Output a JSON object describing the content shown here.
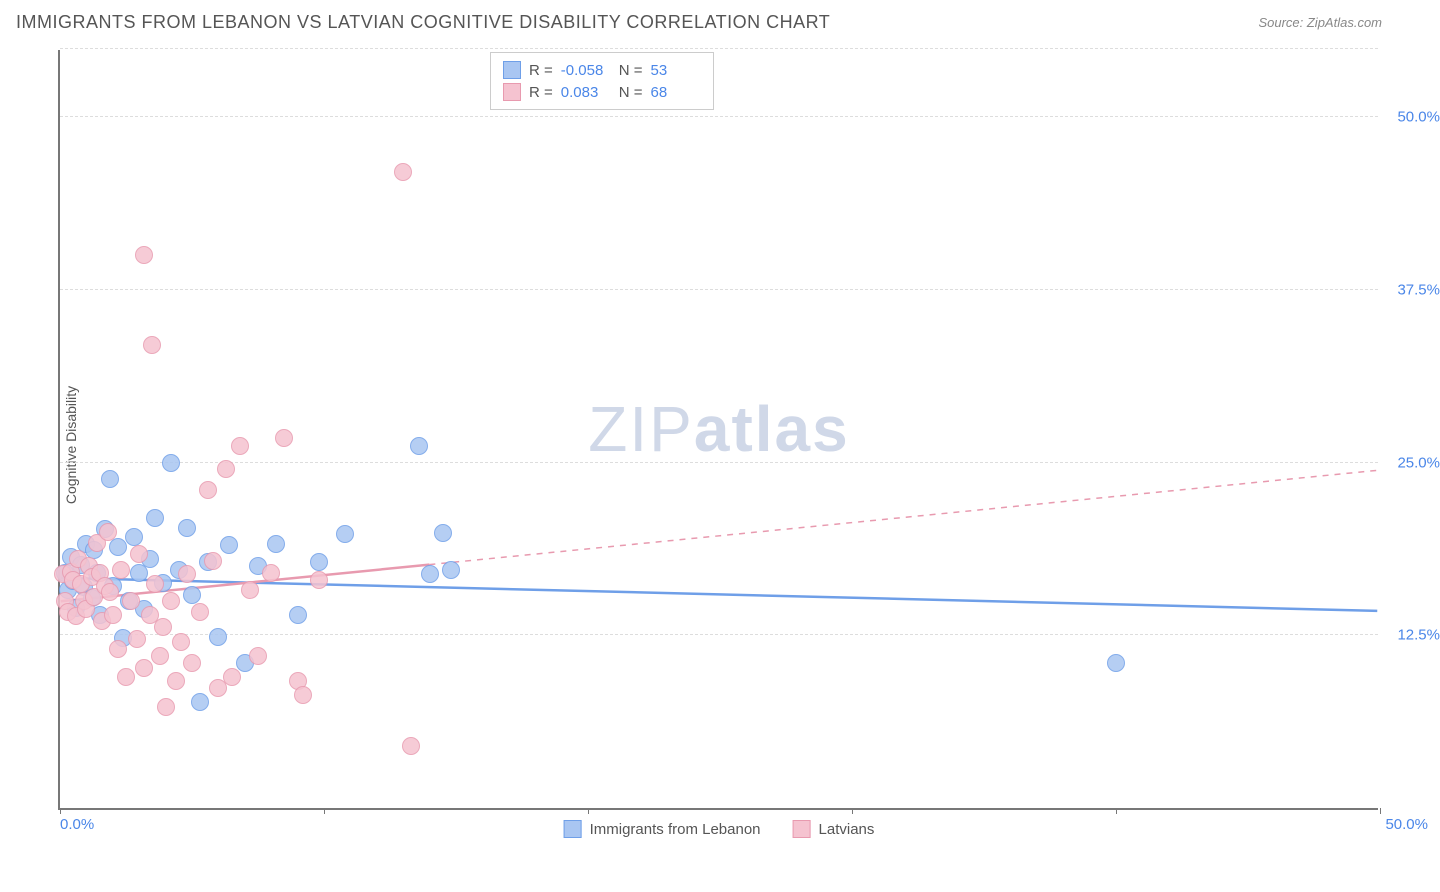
{
  "header": {
    "title": "IMMIGRANTS FROM LEBANON VS LATVIAN COGNITIVE DISABILITY CORRELATION CHART",
    "source_label": "Source: ZipAtlas.com"
  },
  "watermark": {
    "light": "ZIP",
    "bold": "atlas"
  },
  "chart": {
    "type": "scatter",
    "xlim": [
      0,
      50
    ],
    "ylim": [
      0,
      55
    ],
    "y_ticks": [
      12.5,
      25.0,
      37.5,
      50.0
    ],
    "y_tick_labels": [
      "12.5%",
      "25.0%",
      "37.5%",
      "50.0%"
    ],
    "x_ticks": [
      0,
      10,
      20,
      30,
      40,
      50
    ],
    "x_left_label": "0.0%",
    "x_right_label": "50.0%",
    "y_axis_label": "Cognitive Disability",
    "grid_color": "#dddddd",
    "axis_color": "#777777",
    "background_color": "#ffffff",
    "marker_radius": 9,
    "marker_stroke_width": 1.2,
    "marker_fill_opacity": 0.35,
    "series": [
      {
        "id": "lebanon",
        "label": "Immigrants from Lebanon",
        "color_stroke": "#6f9fe8",
        "color_fill": "#a9c6f2",
        "R": "-0.058",
        "N": "53",
        "trend": {
          "y_intercept": 16.7,
          "y_at_xmax": 14.3,
          "solid_until_x": 50
        },
        "points": [
          [
            0.2,
            17.0
          ],
          [
            0.3,
            15.8
          ],
          [
            0.4,
            18.2
          ],
          [
            0.5,
            16.4
          ],
          [
            0.6,
            14.5
          ],
          [
            0.8,
            17.6
          ],
          [
            0.9,
            16.0
          ],
          [
            1.0,
            19.1
          ],
          [
            1.2,
            15.2
          ],
          [
            1.3,
            18.7
          ],
          [
            1.4,
            17.0
          ],
          [
            1.5,
            14.0
          ],
          [
            1.7,
            20.2
          ],
          [
            1.9,
            23.8
          ],
          [
            2.0,
            16.1
          ],
          [
            2.2,
            18.9
          ],
          [
            2.4,
            12.3
          ],
          [
            2.6,
            15.0
          ],
          [
            2.8,
            19.6
          ],
          [
            3.0,
            17.0
          ],
          [
            3.2,
            14.4
          ],
          [
            3.4,
            18.0
          ],
          [
            3.6,
            21.0
          ],
          [
            3.9,
            16.3
          ],
          [
            4.2,
            25.0
          ],
          [
            4.5,
            17.2
          ],
          [
            4.8,
            20.3
          ],
          [
            5.0,
            15.4
          ],
          [
            5.3,
            7.7
          ],
          [
            5.6,
            17.8
          ],
          [
            6.0,
            12.4
          ],
          [
            6.4,
            19.0
          ],
          [
            7.0,
            10.5
          ],
          [
            7.5,
            17.5
          ],
          [
            8.2,
            19.1
          ],
          [
            9.0,
            14.0
          ],
          [
            9.8,
            17.8
          ],
          [
            10.8,
            19.8
          ],
          [
            13.6,
            26.2
          ],
          [
            14.0,
            16.9
          ],
          [
            14.5,
            19.9
          ],
          [
            14.8,
            17.2
          ],
          [
            40.0,
            10.5
          ]
        ]
      },
      {
        "id": "latvians",
        "label": "Latvians",
        "color_stroke": "#e89aaf",
        "color_fill": "#f5c3d0",
        "R": "0.083",
        "N": "68",
        "trend": {
          "y_intercept": 15.0,
          "y_at_xmax": 24.5,
          "solid_until_x": 14
        },
        "points": [
          [
            0.1,
            16.9
          ],
          [
            0.2,
            15.0
          ],
          [
            0.3,
            14.2
          ],
          [
            0.4,
            17.1
          ],
          [
            0.5,
            16.5
          ],
          [
            0.6,
            13.9
          ],
          [
            0.7,
            18.0
          ],
          [
            0.8,
            16.2
          ],
          [
            0.9,
            15.0
          ],
          [
            1.0,
            14.4
          ],
          [
            1.1,
            17.5
          ],
          [
            1.2,
            16.7
          ],
          [
            1.3,
            15.3
          ],
          [
            1.4,
            19.2
          ],
          [
            1.5,
            17.0
          ],
          [
            1.6,
            13.5
          ],
          [
            1.7,
            16.1
          ],
          [
            1.8,
            20.0
          ],
          [
            1.9,
            15.6
          ],
          [
            2.0,
            14.0
          ],
          [
            2.2,
            11.5
          ],
          [
            2.3,
            17.2
          ],
          [
            2.5,
            9.5
          ],
          [
            2.7,
            15.0
          ],
          [
            2.9,
            12.2
          ],
          [
            3.0,
            18.4
          ],
          [
            3.2,
            10.1
          ],
          [
            3.4,
            14.0
          ],
          [
            3.5,
            33.5
          ],
          [
            3.6,
            16.2
          ],
          [
            3.8,
            11.0
          ],
          [
            3.9,
            13.1
          ],
          [
            4.0,
            7.3
          ],
          [
            4.2,
            15.0
          ],
          [
            4.4,
            9.2
          ],
          [
            4.6,
            12.0
          ],
          [
            4.8,
            16.9
          ],
          [
            5.0,
            10.5
          ],
          [
            5.3,
            14.2
          ],
          [
            5.6,
            23.0
          ],
          [
            5.8,
            17.9
          ],
          [
            6.0,
            8.7
          ],
          [
            6.3,
            24.5
          ],
          [
            6.5,
            9.5
          ],
          [
            6.8,
            26.2
          ],
          [
            7.2,
            15.8
          ],
          [
            7.5,
            11.0
          ],
          [
            8.0,
            17.0
          ],
          [
            8.5,
            26.8
          ],
          [
            9.0,
            9.2
          ],
          [
            9.2,
            8.2
          ],
          [
            9.8,
            16.5
          ],
          [
            13.0,
            46.0
          ],
          [
            13.3,
            4.5
          ],
          [
            3.2,
            40.0
          ]
        ]
      }
    ]
  },
  "legend_top": {
    "r_label": "R =",
    "n_label": "N ="
  }
}
